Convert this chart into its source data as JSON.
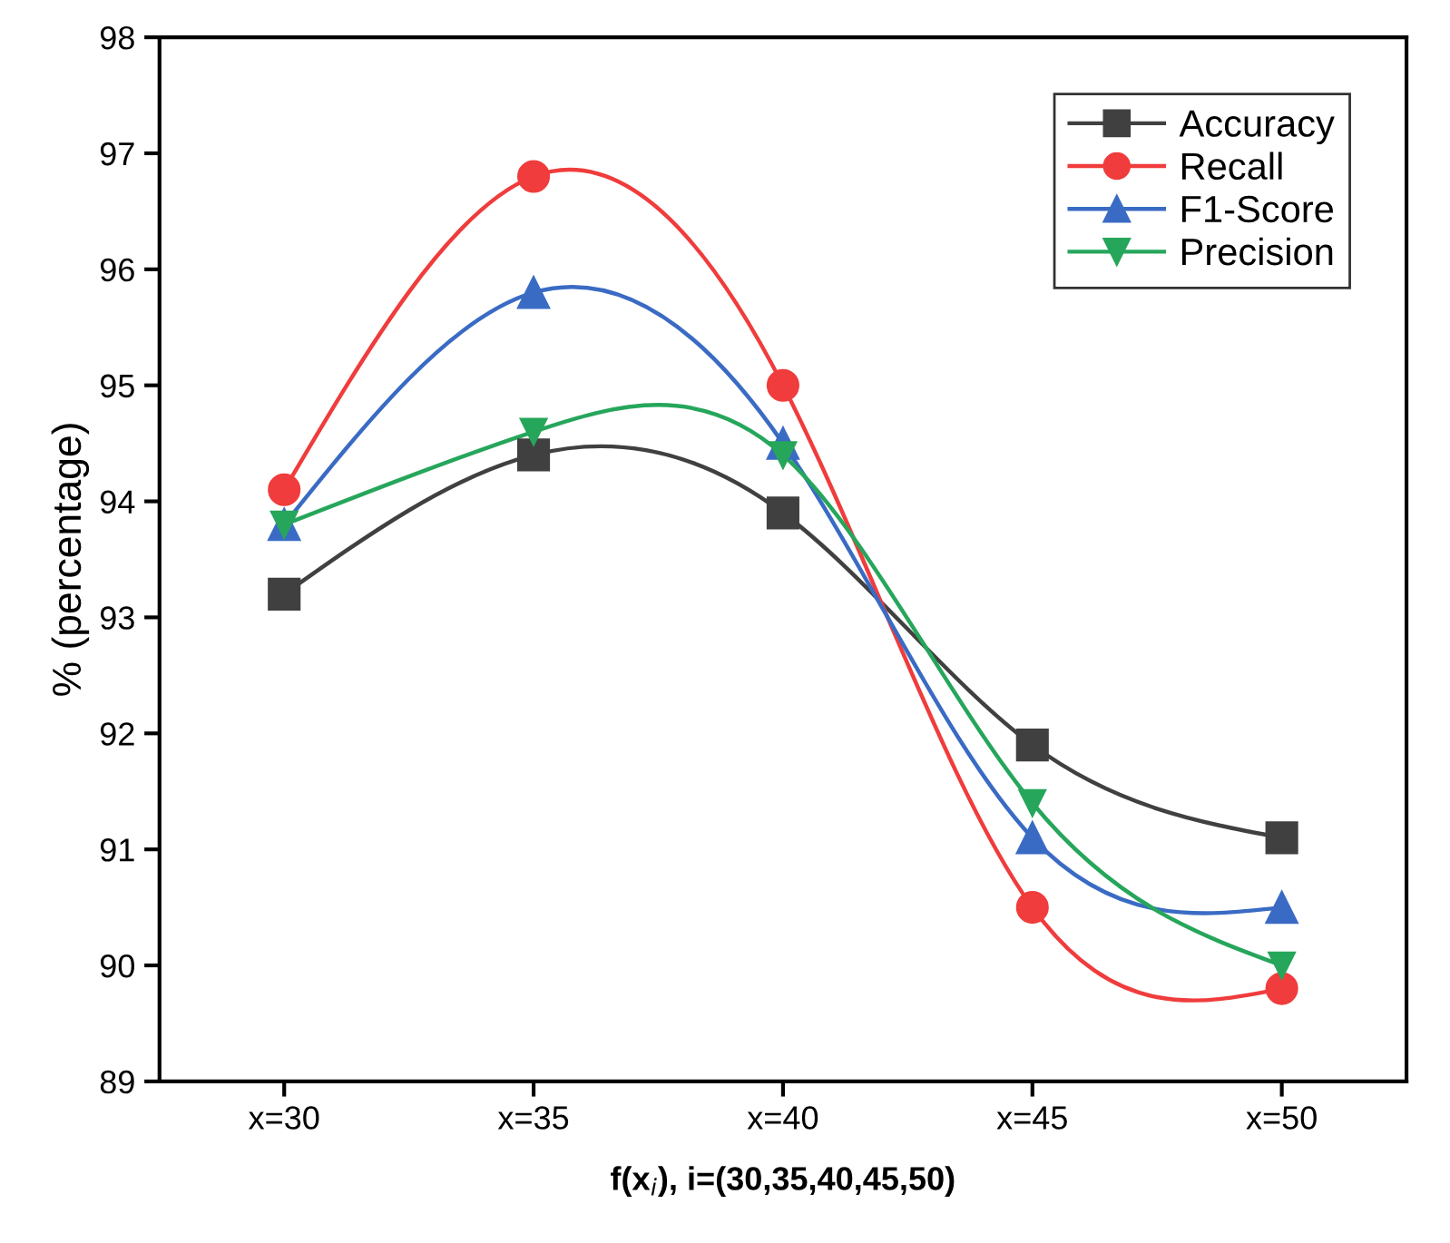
{
  "chart_data": {
    "type": "line",
    "xlabel": "f(x$_{i}$), i=(30,35,40,45,50)",
    "ylabel": "% (percentage)",
    "categories": [
      "x=30",
      "x=35",
      "x=40",
      "x=45",
      "x=50"
    ],
    "series": [
      {
        "name": "Accuracy",
        "color": "#404040",
        "marker": "square",
        "values": [
          93.2,
          94.4,
          93.9,
          91.9,
          91.1
        ]
      },
      {
        "name": "Recall",
        "color": "#f03c3c",
        "marker": "circle",
        "values": [
          94.1,
          96.8,
          95.0,
          90.5,
          89.8
        ]
      },
      {
        "name": "F1-Score",
        "color": "#3a6bc4",
        "marker": "triangle",
        "values": [
          93.8,
          95.8,
          94.5,
          91.1,
          90.5
        ]
      },
      {
        "name": "Precision",
        "color": "#26a65b",
        "marker": "triangle_down",
        "values": [
          93.8,
          94.6,
          94.4,
          91.4,
          90.0
        ]
      }
    ],
    "ylim": [
      89,
      98
    ],
    "yticks": [
      89,
      90,
      91,
      92,
      93,
      94,
      95,
      96,
      97,
      98
    ],
    "grid": false,
    "legend": "top right",
    "line_style": "solid"
  }
}
